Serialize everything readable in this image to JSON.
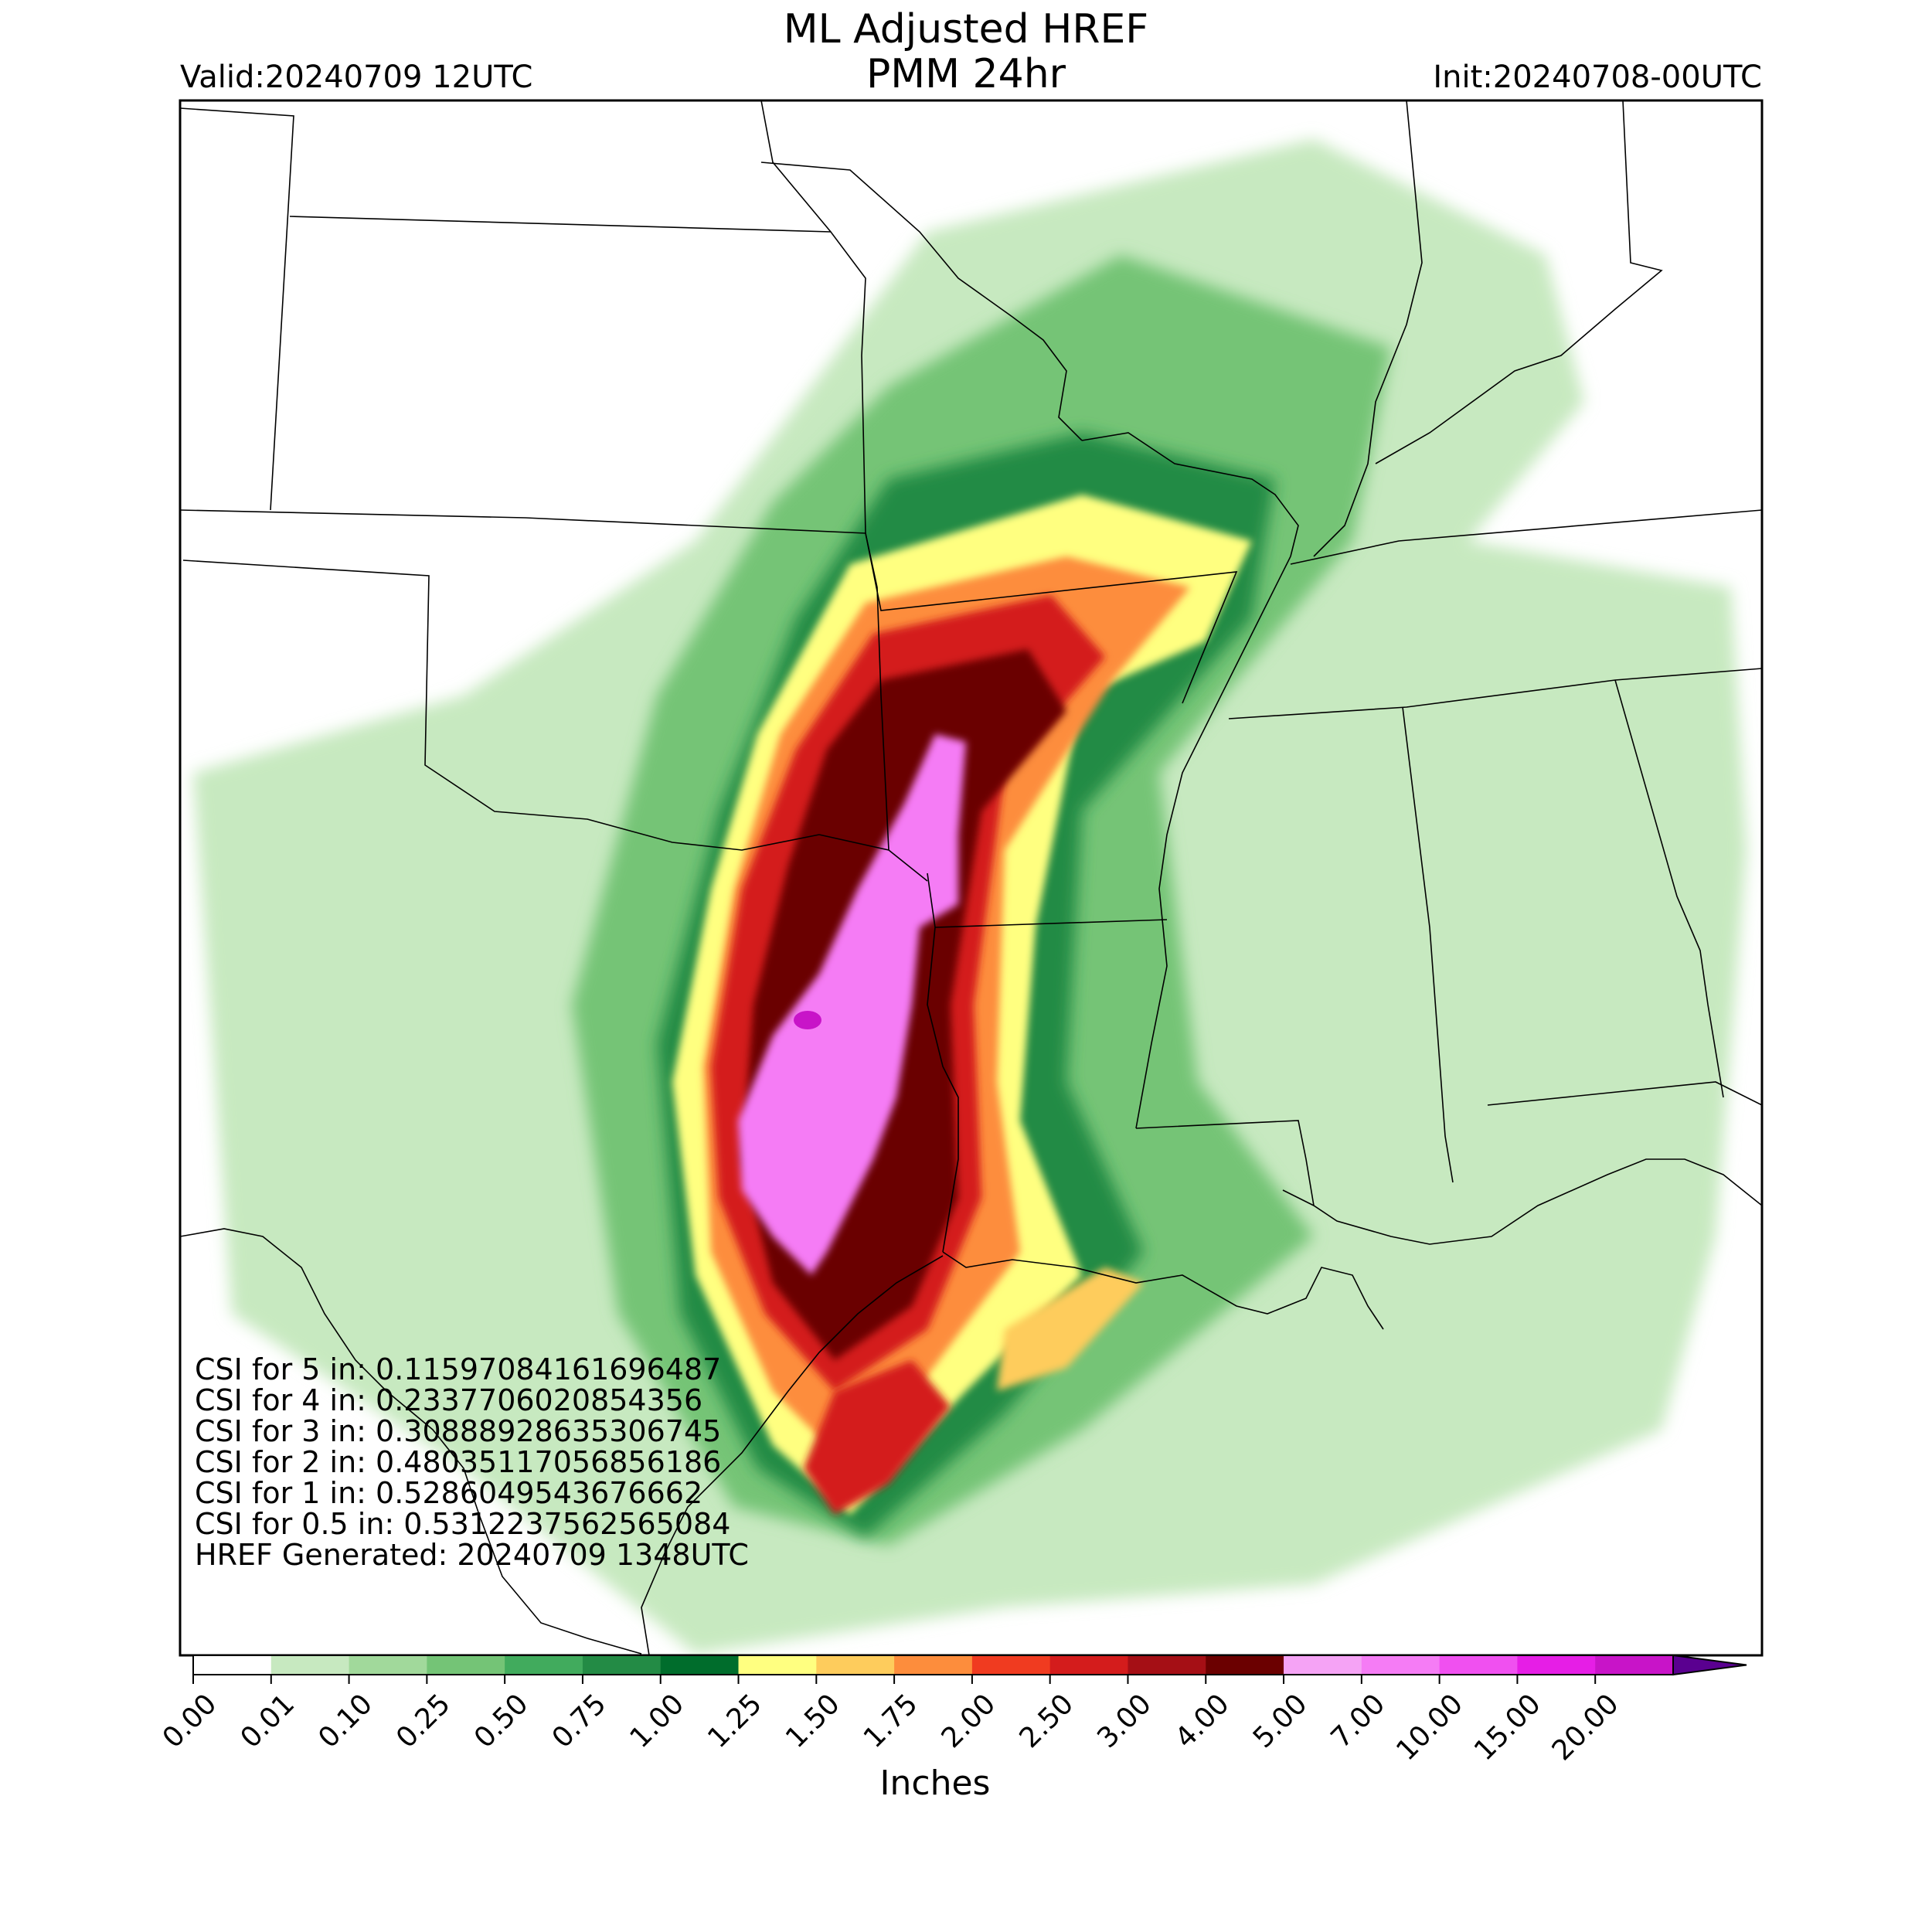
{
  "title": {
    "line1": "ML Adjusted HREF",
    "line2": "PMM 24hr"
  },
  "valid": "Valid:20240709 12UTC",
  "init": "Init:20240708-00UTC",
  "stats": [
    "CSI for 5 in: 0.11597084161696487",
    "CSI for 4 in: 0.2337706020854356",
    "CSI for 3 in: 0.30888928635306745",
    "CSI for 2 in: 0.48035117056856186",
    "CSI for 1 in: 0.5286049543676662",
    "CSI for 0.5 in: 0.5312237562565084",
    "HREF Generated: 20240709 1348UTC"
  ],
  "colorbar": {
    "label": "Inches",
    "ticks": [
      "0.00",
      "0.01",
      "0.10",
      "0.25",
      "0.50",
      "0.75",
      "1.00",
      "1.25",
      "1.50",
      "1.75",
      "2.00",
      "2.50",
      "3.00",
      "4.00",
      "5.00",
      "7.00",
      "10.00",
      "15.00",
      "20.00"
    ],
    "colors": [
      "#ffffff",
      "#c7e9c0",
      "#a1d99b",
      "#74c476",
      "#41ab5d",
      "#238b45",
      "#006d2c",
      "#ffff80",
      "#fecc5c",
      "#fd8d3c",
      "#f03b20",
      "#d41c1c",
      "#a50f15",
      "#6b0000",
      "#f5a3f5",
      "#f57cf5",
      "#f050f0",
      "#e61ee6",
      "#c814c8",
      "#8b00c8"
    ],
    "overflow_color": "#5a0090"
  },
  "colors": {
    "border": "#000000",
    "boundaries": "#000000"
  }
}
